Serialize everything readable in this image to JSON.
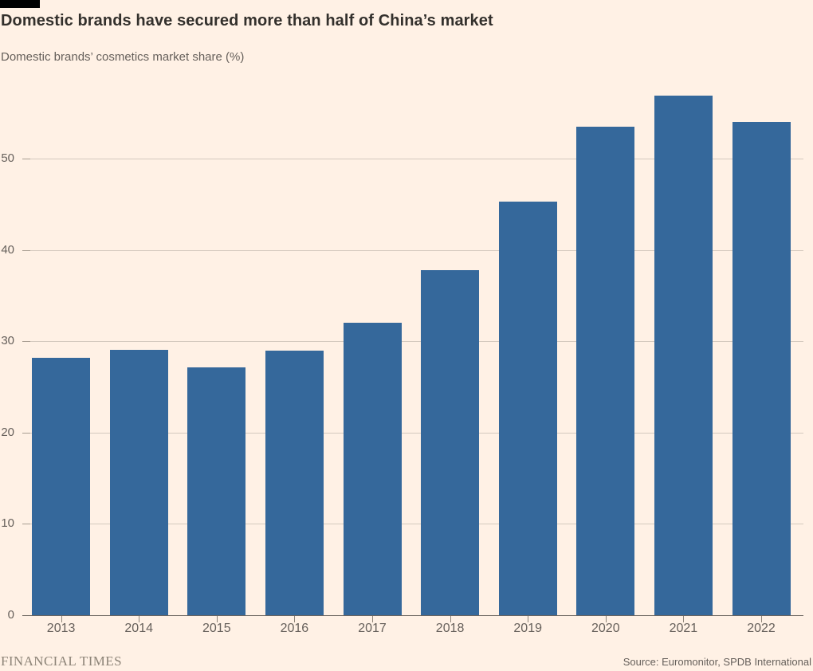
{
  "footer": {
    "brand": "FINANCIAL TIMES",
    "source": "Source: Euromonitor, SPDB International"
  },
  "chart_data": {
    "type": "bar",
    "title": "Domestic brands have secured more than half of China’s market",
    "subtitle": "Domestic brands’ cosmetics market share (%)",
    "categories": [
      "2013",
      "2014",
      "2015",
      "2016",
      "2017",
      "2018",
      "2019",
      "2020",
      "2021",
      "2022"
    ],
    "values": [
      28.2,
      29.1,
      27.1,
      29.0,
      32.0,
      37.8,
      45.3,
      53.5,
      56.9,
      54.0
    ],
    "xlabel": "",
    "ylabel": "",
    "ylim": [
      0,
      58.2
    ],
    "yticks": [
      0,
      10,
      20,
      30,
      40,
      50
    ],
    "grid": true,
    "legend": "none",
    "bar_color": "#35689B",
    "background_color": "#FFF1E5",
    "flag_color": "#000000"
  }
}
